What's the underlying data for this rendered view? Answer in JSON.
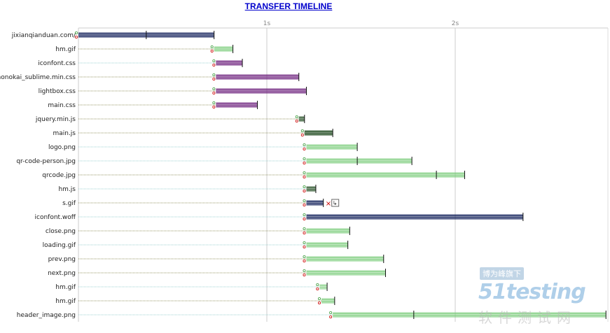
{
  "chart_data": {
    "type": "waterfall-timeline",
    "title": "TRANSFER TIMELINE",
    "xlim": [
      0,
      2.8
    ],
    "xticks": [
      {
        "value": 1,
        "label": "1s"
      },
      {
        "value": 2,
        "label": "2s"
      }
    ],
    "grid": true,
    "colors": {
      "css_js": "#6a1b7a",
      "doc": "#0b1a55",
      "img": "#7dcd7d",
      "js": "#0b3a0b",
      "wait": "#9a9a6a",
      "wait_cache": "#9fd3d3",
      "marker_start": "#cc0000",
      "marker_end": "#3a9a3a"
    },
    "rows": [
      {
        "label": "jixianqianduan.com/",
        "start": 0.0,
        "wait_start": 0.0,
        "end": 0.72,
        "marker": 0.36,
        "color": "doc",
        "wait_style": "wait"
      },
      {
        "label": "hm.gif",
        "start": 0.72,
        "wait_start": 0.0,
        "end": 0.82,
        "marker": 0.82,
        "color": "img",
        "wait_style": "wait"
      },
      {
        "label": "iconfont.css",
        "start": 0.73,
        "wait_start": 0.0,
        "end": 0.87,
        "marker": 0.87,
        "color": "css_js",
        "wait_style": "wait_cache"
      },
      {
        "label": "monokai_sublime.min.css",
        "start": 0.73,
        "wait_start": 0.0,
        "end": 1.17,
        "marker": 1.17,
        "color": "css_js",
        "wait_style": "wait"
      },
      {
        "label": "lightbox.css",
        "start": 0.73,
        "wait_start": 0.0,
        "end": 1.21,
        "marker": 1.21,
        "color": "css_js",
        "wait_style": "wait"
      },
      {
        "label": "main.css",
        "start": 0.73,
        "wait_start": 0.0,
        "end": 0.95,
        "marker": 0.95,
        "color": "css_js",
        "wait_style": "wait"
      },
      {
        "label": "jquery.min.js",
        "start": 1.17,
        "wait_start": 0.0,
        "end": 1.2,
        "marker": 1.2,
        "color": "js",
        "wait_style": "wait"
      },
      {
        "label": "main.js",
        "start": 1.2,
        "wait_start": 0.0,
        "end": 1.35,
        "marker": 1.35,
        "color": "js",
        "wait_style": "wait"
      },
      {
        "label": "logo.png",
        "start": 1.21,
        "wait_start": 0.0,
        "end": 1.48,
        "marker": 1.48,
        "color": "img",
        "wait_style": "wait_cache"
      },
      {
        "label": "qr-code-person.jpg",
        "start": 1.21,
        "wait_start": 0.0,
        "end": 1.77,
        "marker": 1.48,
        "color": "img",
        "wait_style": "wait_cache"
      },
      {
        "label": "qrcode.jpg",
        "start": 1.21,
        "wait_start": 0.0,
        "end": 2.05,
        "marker": 1.9,
        "color": "img",
        "wait_style": "wait"
      },
      {
        "label": "hm.js",
        "start": 1.21,
        "wait_start": 0.0,
        "end": 1.26,
        "marker": 1.26,
        "color": "js",
        "wait_style": "wait_cache"
      },
      {
        "label": "s.gif",
        "start": 1.21,
        "wait_start": 0.0,
        "end": 1.3,
        "marker": 1.3,
        "color": "doc",
        "wait_style": "wait",
        "error": true
      },
      {
        "label": "iconfont.woff",
        "start": 1.21,
        "wait_start": 0.0,
        "end": 2.36,
        "marker": 2.36,
        "color": "doc",
        "wait_style": "wait_cache"
      },
      {
        "label": "close.png",
        "start": 1.21,
        "wait_start": 0.0,
        "end": 1.44,
        "marker": 1.44,
        "color": "img",
        "wait_style": "wait"
      },
      {
        "label": "loading.gif",
        "start": 1.21,
        "wait_start": 0.0,
        "end": 1.43,
        "marker": 1.43,
        "color": "img",
        "wait_style": "wait_cache"
      },
      {
        "label": "prev.png",
        "start": 1.21,
        "wait_start": 0.0,
        "end": 1.62,
        "marker": 1.62,
        "color": "img",
        "wait_style": "wait"
      },
      {
        "label": "next.png",
        "start": 1.21,
        "wait_start": 0.0,
        "end": 1.63,
        "marker": 1.63,
        "color": "img",
        "wait_style": "wait"
      },
      {
        "label": "hm.gif",
        "start": 1.28,
        "wait_start": 0.0,
        "end": 1.32,
        "marker": 1.32,
        "color": "img",
        "wait_style": "wait_cache"
      },
      {
        "label": "hm.gif",
        "start": 1.29,
        "wait_start": 0.0,
        "end": 1.36,
        "marker": 1.36,
        "color": "img",
        "wait_style": "wait"
      },
      {
        "label": "header_image.png",
        "start": 1.35,
        "wait_start": 0.0,
        "end": 2.8,
        "marker": 1.78,
        "color": "img",
        "wait_style": "wait_cache"
      }
    ]
  },
  "watermark": {
    "top": "博为峰旗下",
    "brand": "51testing",
    "bottom": "软件测试网"
  }
}
